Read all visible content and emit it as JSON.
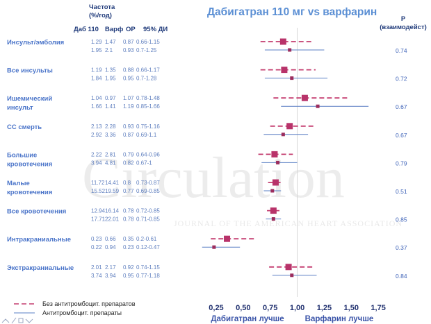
{
  "chart_data": {
    "type": "forest",
    "title": "Дабигатран 110 мг vs варфарин",
    "header": {
      "rate_label": "Частота\n(%/год)",
      "col_dab": "Даб 110",
      "col_warf": "Варф",
      "col_or": "ОР",
      "col_ci": "95% ДИ",
      "p_label": "P\n(взаимодейст)"
    },
    "xlim": [
      0.16,
      1.82
    ],
    "ticks": [
      0.25,
      0.5,
      0.75,
      1.0,
      1.25,
      1.5,
      1.75
    ],
    "tick_labels": [
      "0,25",
      "0,50",
      "0,75",
      "1,00",
      "1,25",
      "1,50",
      "1,75"
    ],
    "reference_line": 1.0,
    "xlabel_left": "Дабигатран лучше",
    "xlabel_right": "Варфарин лучше",
    "series": [
      {
        "name": "Без антитромбоцит. препаратов",
        "color": "#c43c6f",
        "style": "dashed"
      },
      {
        "name": "Антитромбоцит. препараты",
        "color": "#5a7fc4",
        "style": "solid"
      }
    ],
    "rows": [
      {
        "label": "Инсульт/эмболия",
        "p": "0.74",
        "a": {
          "dab": "1.29",
          "warf": "1.47",
          "or": "0.87",
          "ci": "0.66-1.15",
          "est": 0.87,
          "lo": 0.66,
          "hi": 1.15
        },
        "b": {
          "dab": "1.95",
          "warf": "2.1",
          "or": "0.93",
          "ci": "0.7-1.25",
          "est": 0.93,
          "lo": 0.7,
          "hi": 1.25
        }
      },
      {
        "label": "Все инсульты",
        "p": "0.72",
        "a": {
          "dab": "1.19",
          "warf": "1.35",
          "or": "0.88",
          "ci": "0.66-1.17",
          "est": 0.88,
          "lo": 0.66,
          "hi": 1.17
        },
        "b": {
          "dab": "1.84",
          "warf": "1.95",
          "or": "0.95",
          "ci": "0.7-1.28",
          "est": 0.95,
          "lo": 0.7,
          "hi": 1.28
        }
      },
      {
        "label": "Ишемический\nинсульт",
        "p": "0.67",
        "a": {
          "dab": "1.04",
          "warf": "0.97",
          "or": "1.07",
          "ci": "0.78-1.48",
          "est": 1.07,
          "lo": 0.78,
          "hi": 1.48
        },
        "b": {
          "dab": "1.66",
          "warf": "1.41",
          "or": "1.19",
          "ci": "0.85-1.66",
          "est": 1.19,
          "lo": 0.85,
          "hi": 1.66
        }
      },
      {
        "label": "СС смерть",
        "p": "0.67",
        "a": {
          "dab": "2.13",
          "warf": "2.28",
          "or": "0.93",
          "ci": "0.75-1.16",
          "est": 0.93,
          "lo": 0.75,
          "hi": 1.16
        },
        "b": {
          "dab": "2.92",
          "warf": "3.36",
          "or": "0.87",
          "ci": "0.69-1.1",
          "est": 0.87,
          "lo": 0.69,
          "hi": 1.1
        }
      },
      {
        "label": "Большие\nкровотечения",
        "p": "0.79",
        "a": {
          "dab": "2.22",
          "warf": "2.81",
          "or": "0.79",
          "ci": "0.64-0.96",
          "est": 0.79,
          "lo": 0.64,
          "hi": 0.96
        },
        "b": {
          "dab": "3.94",
          "warf": "4.81",
          "or": "0.82",
          "ci": "0.67-1",
          "est": 0.82,
          "lo": 0.67,
          "hi": 1.0
        }
      },
      {
        "label": "Малые\nкровотечения",
        "p": "0.51",
        "a": {
          "dab": "11.72",
          "warf": "14.41",
          "or": "0.8",
          "ci": "0.73-0.87",
          "est": 0.8,
          "lo": 0.73,
          "hi": 0.87
        },
        "b": {
          "dab": "15.52",
          "warf": "19.59",
          "or": "0.77",
          "ci": "0.69-0.85",
          "est": 0.77,
          "lo": 0.69,
          "hi": 0.85
        }
      },
      {
        "label": "Все кровотечения",
        "p": "0.85",
        "a": {
          "dab": "12.94",
          "warf": "16.14",
          "or": "0.78",
          "ci": "0.72-0.85",
          "est": 0.78,
          "lo": 0.72,
          "hi": 0.85
        },
        "b": {
          "dab": "17.71",
          "warf": "22.01",
          "or": "0.78",
          "ci": "0.71-0.85",
          "est": 0.78,
          "lo": 0.71,
          "hi": 0.85
        }
      },
      {
        "label": "Интракраниальные",
        "p": "0.37",
        "a": {
          "dab": "0.23",
          "warf": "0.66",
          "or": "0.35",
          "ci": "0.2-0.61",
          "est": 0.35,
          "lo": 0.2,
          "hi": 0.61
        },
        "b": {
          "dab": "0.22",
          "warf": "0.94",
          "or": "0.23",
          "ci": "0.12-0.47",
          "est": 0.23,
          "lo": 0.12,
          "hi": 0.47
        }
      },
      {
        "label": "Экстракраниальные",
        "p": "0.84",
        "a": {
          "dab": "2.01",
          "warf": "2.17",
          "or": "0.92",
          "ci": "0.74-1.15",
          "est": 0.92,
          "lo": 0.74,
          "hi": 1.15
        },
        "b": {
          "dab": "3.74",
          "warf": "3.94",
          "or": "0.95",
          "ci": "0.77-1.18",
          "est": 0.95,
          "lo": 0.77,
          "hi": 1.18
        }
      }
    ]
  },
  "watermark": {
    "text": "Circulation",
    "subtext": "JOURNAL OF THE AMERICAN HEART ASSOCIATION"
  }
}
